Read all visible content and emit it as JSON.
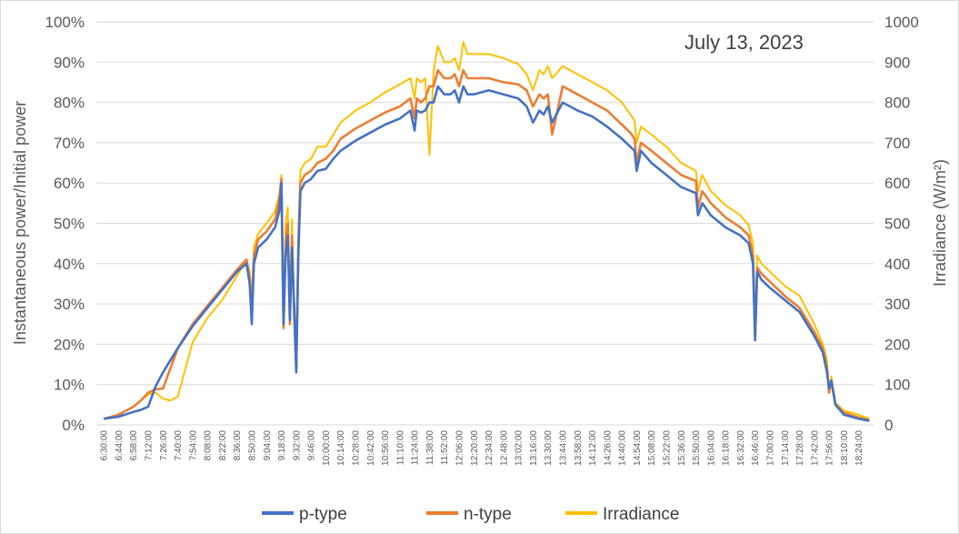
{
  "chart_data": {
    "type": "line",
    "title": "",
    "annotation": "July 13, 2023",
    "ylabel": "Instantaneous power/Initial power",
    "y2label": "Irradiance  (W/m²)",
    "ylim": [
      0,
      1
    ],
    "y2lim": [
      0,
      1000
    ],
    "y_ticks": [
      "0%",
      "10%",
      "20%",
      "30%",
      "40%",
      "50%",
      "60%",
      "70%",
      "80%",
      "90%",
      "100%"
    ],
    "y2_ticks": [
      "0",
      "100",
      "200",
      "300",
      "400",
      "500",
      "600",
      "700",
      "800",
      "900",
      "1000"
    ],
    "x_ticks": [
      "6:30:00",
      "6:44:00",
      "6:58:00",
      "7:12:00",
      "7:26:00",
      "7:40:00",
      "7:54:00",
      "8:08:00",
      "8:22:00",
      "8:36:00",
      "8:50:00",
      "9:04:00",
      "9:18:00",
      "9:32:00",
      "9:46:00",
      "10:00:00",
      "10:14:00",
      "10:28:00",
      "10:42:00",
      "10:56:00",
      "11:10:00",
      "11:24:00",
      "11:38:00",
      "11:52:00",
      "12:06:00",
      "12:20:00",
      "12:34:00",
      "12:48:00",
      "13:02:00",
      "13:16:00",
      "13:30:00",
      "13:44:00",
      "13:58:00",
      "14:12:00",
      "14:26:00",
      "14:40:00",
      "14:54:00",
      "15:08:00",
      "15:22:00",
      "15:36:00",
      "15:50:00",
      "16:04:00",
      "16:18:00",
      "16:32:00",
      "16:46:00",
      "17:00:00",
      "17:14:00",
      "17:28:00",
      "17:42:00",
      "17:56:00",
      "18:10:00",
      "18:24:00"
    ],
    "x": [
      "6:30",
      "6:44",
      "6:58",
      "7:05",
      "7:12",
      "7:19",
      "7:26",
      "7:33",
      "7:40",
      "7:54",
      "8:08",
      "8:22",
      "8:36",
      "8:45",
      "8:48",
      "8:50",
      "8:52",
      "8:56",
      "9:04",
      "9:12",
      "9:16",
      "9:18",
      "9:20",
      "9:22",
      "9:24",
      "9:26",
      "9:28",
      "9:30",
      "9:32",
      "9:34",
      "9:36",
      "9:40",
      "9:46",
      "9:52",
      "10:00",
      "10:07",
      "10:14",
      "10:28",
      "10:42",
      "10:56",
      "11:10",
      "11:20",
      "11:24",
      "11:26",
      "11:30",
      "11:34",
      "11:38",
      "11:42",
      "11:46",
      "11:52",
      "11:58",
      "12:02",
      "12:06",
      "12:10",
      "12:14",
      "12:20",
      "12:34",
      "12:48",
      "13:02",
      "13:10",
      "13:16",
      "13:22",
      "13:26",
      "13:30",
      "13:34",
      "13:44",
      "13:58",
      "14:12",
      "14:26",
      "14:40",
      "14:48",
      "14:52",
      "14:54",
      "14:58",
      "15:08",
      "15:22",
      "15:36",
      "15:50",
      "15:52",
      "15:56",
      "16:04",
      "16:18",
      "16:32",
      "16:40",
      "16:44",
      "16:46",
      "16:48",
      "16:52",
      "17:00",
      "17:14",
      "17:28",
      "17:42",
      "17:50",
      "17:54",
      "17:56",
      "17:58",
      "18:02",
      "18:10",
      "18:24",
      "18:34"
    ],
    "series": [
      {
        "name": "p-type",
        "axis": "left",
        "color": "#4472C4",
        "values": [
          0.015,
          0.02,
          0.032,
          0.037,
          0.045,
          0.095,
          0.13,
          0.16,
          0.19,
          0.245,
          0.29,
          0.335,
          0.38,
          0.4,
          0.35,
          0.25,
          0.4,
          0.44,
          0.46,
          0.49,
          0.53,
          0.6,
          0.25,
          0.42,
          0.47,
          0.26,
          0.44,
          0.3,
          0.13,
          0.42,
          0.58,
          0.6,
          0.61,
          0.63,
          0.635,
          0.66,
          0.68,
          0.705,
          0.725,
          0.745,
          0.76,
          0.78,
          0.73,
          0.78,
          0.775,
          0.78,
          0.8,
          0.8,
          0.84,
          0.82,
          0.82,
          0.83,
          0.8,
          0.84,
          0.82,
          0.82,
          0.83,
          0.82,
          0.81,
          0.79,
          0.75,
          0.78,
          0.77,
          0.79,
          0.75,
          0.8,
          0.78,
          0.765,
          0.74,
          0.71,
          0.69,
          0.68,
          0.63,
          0.68,
          0.65,
          0.62,
          0.59,
          0.575,
          0.52,
          0.55,
          0.52,
          0.49,
          0.47,
          0.45,
          0.4,
          0.21,
          0.38,
          0.36,
          0.34,
          0.31,
          0.28,
          0.22,
          0.18,
          0.13,
          0.09,
          0.11,
          0.05,
          0.025,
          0.015,
          0.01
        ]
      },
      {
        "name": "n-type",
        "axis": "left",
        "color": "#ED7D31",
        "values": [
          0.015,
          0.025,
          0.045,
          0.06,
          0.08,
          0.088,
          0.09,
          0.14,
          0.19,
          0.25,
          0.295,
          0.34,
          0.385,
          0.41,
          0.36,
          0.28,
          0.42,
          0.46,
          0.48,
          0.51,
          0.56,
          0.61,
          0.24,
          0.45,
          0.5,
          0.25,
          0.47,
          0.28,
          0.14,
          0.44,
          0.6,
          0.62,
          0.63,
          0.65,
          0.66,
          0.68,
          0.71,
          0.735,
          0.755,
          0.775,
          0.79,
          0.81,
          0.76,
          0.81,
          0.8,
          0.81,
          0.84,
          0.84,
          0.88,
          0.86,
          0.86,
          0.87,
          0.84,
          0.88,
          0.86,
          0.86,
          0.86,
          0.85,
          0.845,
          0.83,
          0.79,
          0.82,
          0.81,
          0.82,
          0.72,
          0.84,
          0.82,
          0.8,
          0.78,
          0.745,
          0.725,
          0.71,
          0.65,
          0.7,
          0.68,
          0.65,
          0.62,
          0.605,
          0.54,
          0.58,
          0.55,
          0.515,
          0.49,
          0.47,
          0.42,
          0.22,
          0.39,
          0.375,
          0.355,
          0.32,
          0.29,
          0.23,
          0.19,
          0.14,
          0.08,
          0.11,
          0.05,
          0.03,
          0.018,
          0.012
        ]
      },
      {
        "name": "Irradiance",
        "axis": "right",
        "color": "#FFC000",
        "values": [
          15,
          25,
          45,
          60,
          75,
          80,
          65,
          60,
          70,
          205,
          265,
          310,
          370,
          410,
          380,
          310,
          440,
          475,
          500,
          530,
          570,
          620,
          260,
          500,
          540,
          270,
          510,
          300,
          150,
          480,
          630,
          650,
          660,
          690,
          690,
          720,
          750,
          780,
          800,
          825,
          845,
          860,
          810,
          860,
          850,
          860,
          670,
          880,
          940,
          900,
          900,
          910,
          880,
          950,
          920,
          920,
          920,
          910,
          895,
          870,
          830,
          880,
          870,
          890,
          860,
          890,
          870,
          850,
          830,
          800,
          770,
          755,
          700,
          740,
          720,
          690,
          650,
          630,
          580,
          620,
          580,
          545,
          520,
          495,
          450,
          220,
          420,
          400,
          380,
          345,
          320,
          250,
          200,
          160,
          80,
          120,
          55,
          35,
          25,
          15
        ]
      }
    ],
    "legend": {
      "position": "bottom",
      "entries": [
        "p-type",
        "n-type",
        "Irradiance"
      ]
    },
    "grid": true
  }
}
